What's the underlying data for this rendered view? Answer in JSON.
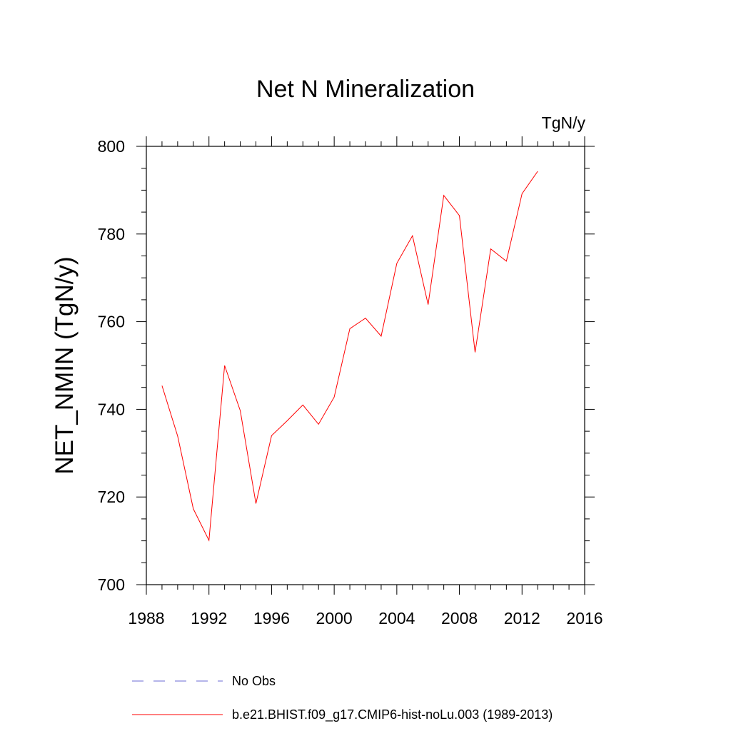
{
  "chart_data": {
    "type": "line",
    "title": "Net N Mineralization",
    "units": "TgN/y",
    "xlabel": "",
    "ylabel": "NET_NMIN  (TgN/y)",
    "xlim": [
      1988,
      2016
    ],
    "ylim": [
      700,
      800
    ],
    "x_ticks": [
      1988,
      1992,
      1996,
      2000,
      2004,
      2008,
      2012,
      2016
    ],
    "y_ticks": [
      700,
      720,
      740,
      760,
      780,
      800
    ],
    "grid": false,
    "legend_position": "bottom",
    "series": [
      {
        "name": "No Obs",
        "color": "#6b6bd6",
        "dash": "dashed",
        "x": [],
        "y": []
      },
      {
        "name": "b.e21.BHIST.f09_g17.CMIP6-hist-noLu.003 (1989-2013)",
        "color": "#ff0000",
        "dash": "solid",
        "x": [
          1989,
          1990,
          1991,
          1992,
          1993,
          1994,
          1995,
          1996,
          1997,
          1998,
          1999,
          2000,
          2001,
          2002,
          2003,
          2004,
          2005,
          2006,
          2007,
          2008,
          2009,
          2010,
          2011,
          2012,
          2013
        ],
        "y": [
          745.4,
          733.9,
          717.3,
          710.1,
          750.0,
          739.7,
          718.5,
          734.0,
          737.4,
          741.0,
          736.6,
          742.8,
          758.4,
          760.8,
          756.7,
          773.3,
          779.6,
          763.9,
          788.8,
          784.2,
          753.0,
          776.6,
          773.8,
          789.2,
          794.3
        ]
      }
    ]
  }
}
